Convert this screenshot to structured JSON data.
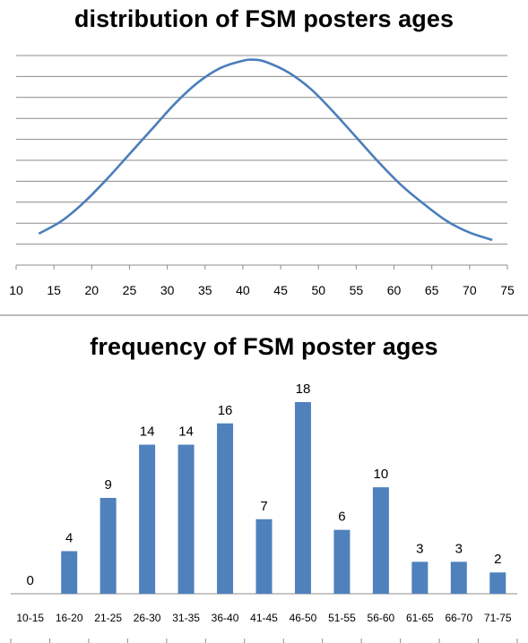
{
  "chart_data": [
    {
      "type": "line",
      "title": "distribution of FSM posters ages",
      "xlim": [
        10,
        75
      ],
      "x_ticks": [
        10,
        15,
        20,
        25,
        30,
        35,
        40,
        45,
        50,
        55,
        60,
        65,
        70,
        75
      ],
      "grid": true,
      "series": [
        {
          "x": [
            13,
            16,
            19,
            22,
            25,
            28,
            31,
            34,
            37,
            40,
            41.5,
            43,
            46,
            49,
            52,
            55,
            58,
            61,
            64,
            67,
            70,
            73
          ],
          "y": [
            0.5,
            1.1,
            2.0,
            3.1,
            4.3,
            5.5,
            6.7,
            7.7,
            8.4,
            8.75,
            8.8,
            8.7,
            8.2,
            7.4,
            6.3,
            5.1,
            3.9,
            2.8,
            1.9,
            1.1,
            0.55,
            0.2
          ]
        }
      ],
      "ylim": [
        -1,
        9
      ]
    },
    {
      "type": "bar",
      "title": "frequency of FSM poster ages",
      "categories": [
        "10-15",
        "16-20",
        "21-25",
        "26-30",
        "31-35",
        "36-40",
        "41-45",
        "46-50",
        "51-55",
        "56-60",
        "61-65",
        "66-70",
        "71-75"
      ],
      "values": [
        0,
        4,
        9,
        14,
        14,
        16,
        7,
        18,
        6,
        10,
        3,
        3,
        2
      ],
      "ylim": [
        0,
        18
      ],
      "bar_color": "#4f81bd",
      "data_labels": true,
      "grid": false
    }
  ]
}
